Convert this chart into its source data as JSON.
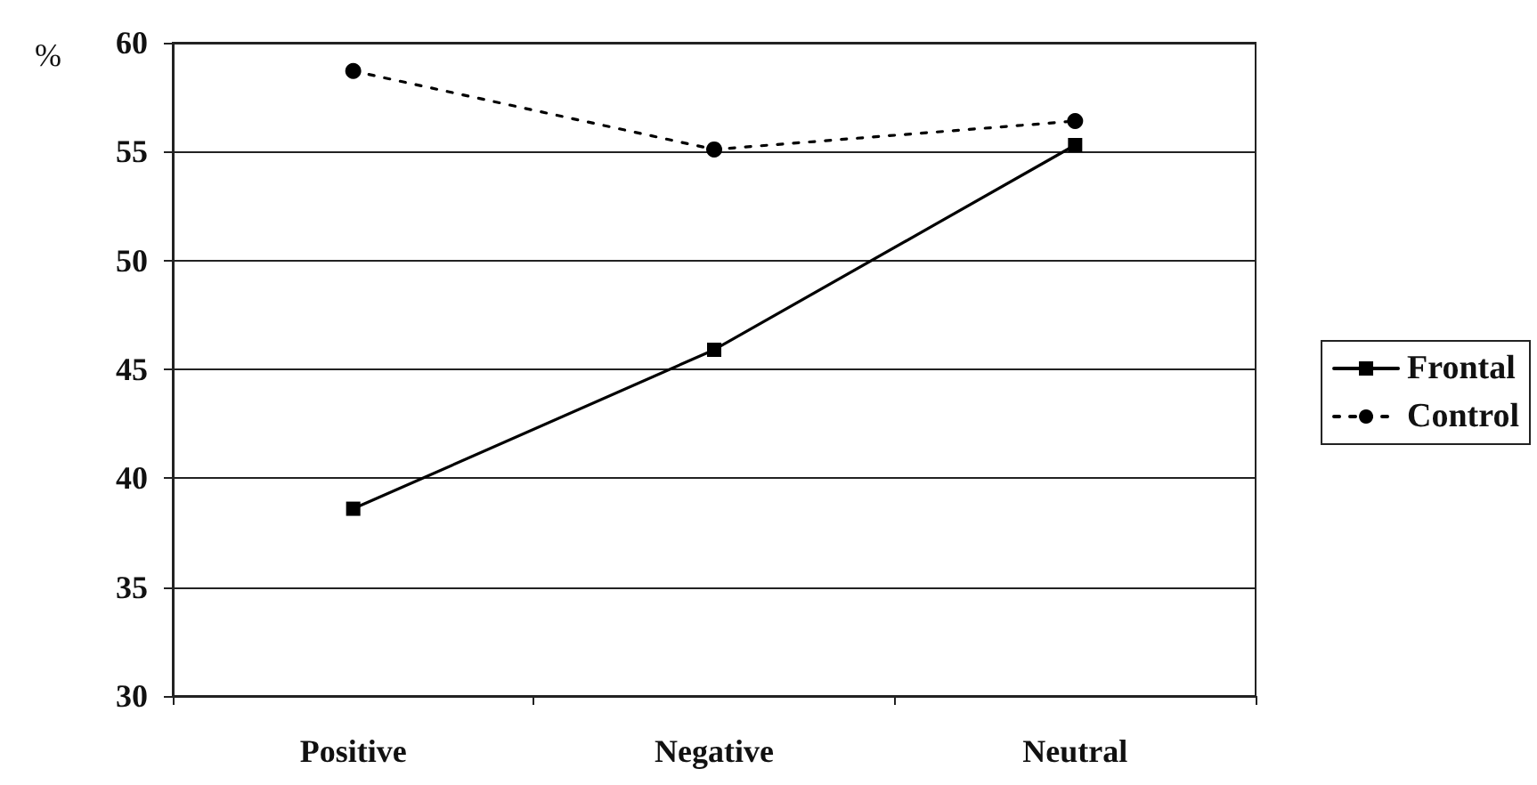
{
  "chart_data": {
    "type": "line",
    "ylabel": "%",
    "categories": [
      "Positive",
      "Negative",
      "Neutral"
    ],
    "series": [
      {
        "name": "Frontal",
        "color": "#000000",
        "values": [
          38.6,
          45.9,
          55.3
        ],
        "marker": "square",
        "line_style": "solid"
      },
      {
        "name": "Control",
        "color": "#000000",
        "values": [
          58.7,
          55.1,
          56.4
        ],
        "marker": "circle",
        "line_style": "dotted"
      }
    ],
    "ylim": [
      30,
      60
    ],
    "yticks": [
      30,
      35,
      40,
      45,
      50,
      55,
      60
    ],
    "grid": "y",
    "legend": "right"
  }
}
